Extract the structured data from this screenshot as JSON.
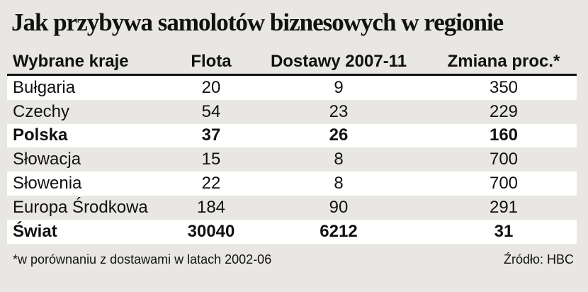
{
  "title": "Jak przybywa samolotów biznesowych w regionie",
  "table": {
    "header": [
      "Wybrane kraje",
      "Flota",
      "Dostawy 2007-11",
      "Zmiana proc.*"
    ],
    "rows": [
      [
        "Bułgaria",
        20,
        9,
        350
      ],
      [
        "Czechy",
        54,
        23,
        229
      ],
      [
        "Polska",
        37,
        26,
        160
      ],
      [
        "Słowacja",
        15,
        8,
        700
      ],
      [
        "Słowenia",
        22,
        8,
        700
      ],
      [
        "Europa Środkowa",
        184,
        90,
        291
      ],
      [
        "Świat",
        30040,
        6212,
        31
      ]
    ]
  },
  "footnote": "*w porównaniu z dostawami w latach 2002-06",
  "source": "Źródło: HBC"
}
